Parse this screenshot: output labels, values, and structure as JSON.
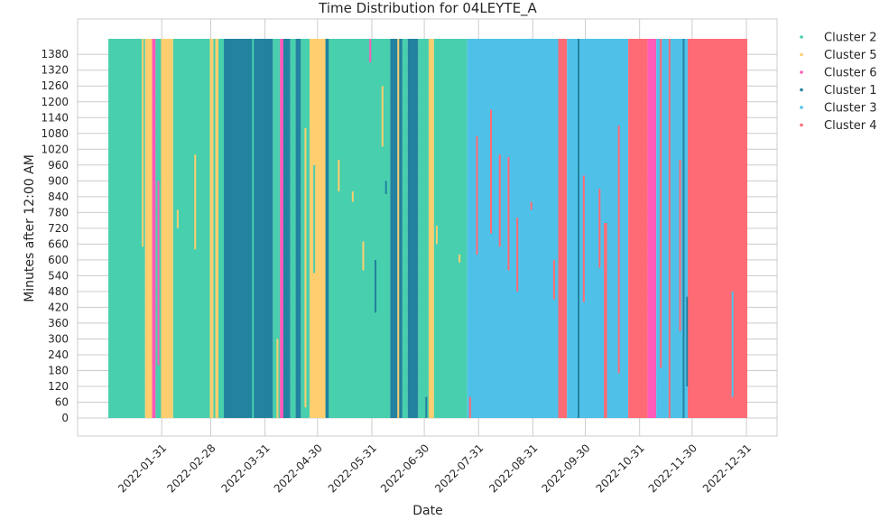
{
  "chart_data": {
    "type": "scatter",
    "title": "Time Distribution for 04LEYTE_A",
    "xlabel": "Date",
    "ylabel": "Minutes after 12:00 AM",
    "x_range": [
      "2022-01-01",
      "2022-12-31"
    ],
    "ylim": [
      0,
      1439
    ],
    "y_ticks": [
      "0",
      "60",
      "120",
      "180",
      "240",
      "300",
      "360",
      "420",
      "480",
      "540",
      "600",
      "660",
      "720",
      "780",
      "840",
      "900",
      "960",
      "1020",
      "1080",
      "1140",
      "1200",
      "1260",
      "1320",
      "1380"
    ],
    "x_ticks": [
      "2022-01-31",
      "2022-02-28",
      "2022-03-31",
      "2022-04-30",
      "2022-05-31",
      "2022-06-30",
      "2022-07-31",
      "2022-08-31",
      "2022-09-30",
      "2022-10-31",
      "2022-11-30",
      "2022-12-31"
    ],
    "grid": true,
    "legend_position": "outside-right-top",
    "series": [
      {
        "name": "Cluster 2",
        "color": "#48cfad"
      },
      {
        "name": "Cluster 5",
        "color": "#ffce6e"
      },
      {
        "name": "Cluster 6",
        "color": "#ff5bb8"
      },
      {
        "name": "Cluster 1",
        "color": "#22829f"
      },
      {
        "name": "Cluster 3",
        "color": "#4fc1e9"
      },
      {
        "name": "Cluster 4",
        "color": "#ff6b74"
      }
    ],
    "day_blocks": [
      {
        "start": "2022-01-01",
        "end": "2022-01-21",
        "series": "Cluster 2"
      },
      {
        "start": "2022-01-22",
        "end": "2022-01-25",
        "series": "Cluster 5"
      },
      {
        "start": "2022-01-26",
        "end": "2022-01-27",
        "series": "Cluster 6"
      },
      {
        "start": "2022-01-28",
        "end": "2022-01-31",
        "series": "Cluster 2"
      },
      {
        "start": "2022-02-01",
        "end": "2022-02-06",
        "series": "Cluster 5"
      },
      {
        "start": "2022-02-07",
        "end": "2022-02-27",
        "series": "Cluster 2"
      },
      {
        "start": "2022-02-28",
        "end": "2022-03-01",
        "series": "Cluster 5"
      },
      {
        "start": "2022-03-02",
        "end": "2022-03-07",
        "series": "Cluster 2"
      },
      {
        "start": "2022-03-08",
        "end": "2022-04-04",
        "series": "Cluster 1"
      },
      {
        "start": "2022-04-05",
        "end": "2022-04-08",
        "series": "Cluster 2"
      },
      {
        "start": "2022-04-09",
        "end": "2022-04-10",
        "series": "Cluster 6"
      },
      {
        "start": "2022-04-11",
        "end": "2022-04-14",
        "series": "Cluster 1"
      },
      {
        "start": "2022-04-15",
        "end": "2022-04-17",
        "series": "Cluster 2"
      },
      {
        "start": "2022-04-18",
        "end": "2022-04-20",
        "series": "Cluster 1"
      },
      {
        "start": "2022-04-21",
        "end": "2022-04-25",
        "series": "Cluster 2"
      },
      {
        "start": "2022-04-26",
        "end": "2022-05-04",
        "series": "Cluster 5"
      },
      {
        "start": "2022-05-05",
        "end": "2022-06-10",
        "series": "Cluster 2"
      },
      {
        "start": "2022-06-11",
        "end": "2022-06-17",
        "series": "Cluster 1"
      },
      {
        "start": "2022-06-18",
        "end": "2022-06-20",
        "series": "Cluster 2"
      },
      {
        "start": "2022-06-21",
        "end": "2022-06-26",
        "series": "Cluster 1"
      },
      {
        "start": "2022-06-27",
        "end": "2022-07-02",
        "series": "Cluster 2"
      },
      {
        "start": "2022-07-03",
        "end": "2022-07-05",
        "series": "Cluster 5"
      },
      {
        "start": "2022-07-06",
        "end": "2022-07-24",
        "series": "Cluster 2"
      },
      {
        "start": "2022-07-25",
        "end": "2022-09-14",
        "series": "Cluster 3"
      },
      {
        "start": "2022-09-15",
        "end": "2022-09-19",
        "series": "Cluster 4"
      },
      {
        "start": "2022-09-20",
        "end": "2022-10-24",
        "series": "Cluster 3"
      },
      {
        "start": "2022-10-25",
        "end": "2022-11-04",
        "series": "Cluster 4"
      },
      {
        "start": "2022-11-05",
        "end": "2022-11-09",
        "series": "Cluster 6"
      },
      {
        "start": "2022-11-10",
        "end": "2022-11-27",
        "series": "Cluster 3"
      },
      {
        "start": "2022-11-28",
        "end": "2022-12-31",
        "series": "Cluster 4"
      }
    ],
    "interruptions": [
      {
        "start": "2022-01-20",
        "end": "2022-01-20",
        "series": "Cluster 5",
        "ymin": 650,
        "ymax": 1439
      },
      {
        "start": "2022-01-29",
        "end": "2022-01-29",
        "series": "Cluster 6",
        "ymin": 200,
        "ymax": 900
      },
      {
        "start": "2022-01-31",
        "end": "2022-01-31",
        "series": "Cluster 5",
        "ymin": 0,
        "ymax": 1439
      },
      {
        "start": "2022-02-09",
        "end": "2022-02-09",
        "series": "Cluster 5",
        "ymin": 720,
        "ymax": 790
      },
      {
        "start": "2022-02-19",
        "end": "2022-02-19",
        "series": "Cluster 5",
        "ymin": 640,
        "ymax": 1000
      },
      {
        "start": "2022-03-03",
        "end": "2022-03-04",
        "series": "Cluster 5",
        "ymin": 0,
        "ymax": 1439
      },
      {
        "start": "2022-03-24",
        "end": "2022-03-24",
        "series": "Cluster 2",
        "ymin": 0,
        "ymax": 1439
      },
      {
        "start": "2022-04-07",
        "end": "2022-04-07",
        "series": "Cluster 5",
        "ymin": 0,
        "ymax": 300
      },
      {
        "start": "2022-04-23",
        "end": "2022-04-23",
        "series": "Cluster 5",
        "ymin": 40,
        "ymax": 1100
      },
      {
        "start": "2022-04-28",
        "end": "2022-04-28",
        "series": "Cluster 2",
        "ymin": 550,
        "ymax": 960
      },
      {
        "start": "2022-05-12",
        "end": "2022-05-12",
        "series": "Cluster 5",
        "ymin": 860,
        "ymax": 980
      },
      {
        "start": "2022-05-05",
        "end": "2022-05-06",
        "series": "Cluster 1",
        "ymin": 0,
        "ymax": 1439
      },
      {
        "start": "2022-05-20",
        "end": "2022-05-20",
        "series": "Cluster 5",
        "ymin": 820,
        "ymax": 860
      },
      {
        "start": "2022-05-26",
        "end": "2022-05-26",
        "series": "Cluster 5",
        "ymin": 560,
        "ymax": 670
      },
      {
        "start": "2022-05-30",
        "end": "2022-05-30",
        "series": "Cluster 6",
        "ymin": 1350,
        "ymax": 1439
      },
      {
        "start": "2022-06-02",
        "end": "2022-06-02",
        "series": "Cluster 1",
        "ymin": 400,
        "ymax": 600
      },
      {
        "start": "2022-06-06",
        "end": "2022-06-06",
        "series": "Cluster 5",
        "ymin": 1030,
        "ymax": 1260
      },
      {
        "start": "2022-06-08",
        "end": "2022-06-08",
        "series": "Cluster 1",
        "ymin": 850,
        "ymax": 900
      },
      {
        "start": "2022-06-15",
        "end": "2022-06-15",
        "series": "Cluster 5",
        "ymin": 0,
        "ymax": 1439
      },
      {
        "start": "2022-07-01",
        "end": "2022-07-01",
        "series": "Cluster 1",
        "ymin": 0,
        "ymax": 80
      },
      {
        "start": "2022-07-07",
        "end": "2022-07-07",
        "series": "Cluster 5",
        "ymin": 660,
        "ymax": 730
      },
      {
        "start": "2022-07-20",
        "end": "2022-07-20",
        "series": "Cluster 5",
        "ymin": 590,
        "ymax": 620
      },
      {
        "start": "2022-07-26",
        "end": "2022-07-26",
        "series": "Cluster 4",
        "ymin": 0,
        "ymax": 80
      },
      {
        "start": "2022-07-30",
        "end": "2022-07-30",
        "series": "Cluster 4",
        "ymin": 620,
        "ymax": 1070
      },
      {
        "start": "2022-08-07",
        "end": "2022-08-07",
        "series": "Cluster 4",
        "ymin": 700,
        "ymax": 1170
      },
      {
        "start": "2022-08-12",
        "end": "2022-08-12",
        "series": "Cluster 4",
        "ymin": 650,
        "ymax": 1000
      },
      {
        "start": "2022-08-17",
        "end": "2022-08-17",
        "series": "Cluster 4",
        "ymin": 560,
        "ymax": 990
      },
      {
        "start": "2022-08-22",
        "end": "2022-08-22",
        "series": "Cluster 4",
        "ymin": 480,
        "ymax": 760
      },
      {
        "start": "2022-08-30",
        "end": "2022-08-30",
        "series": "Cluster 4",
        "ymin": 790,
        "ymax": 820
      },
      {
        "start": "2022-09-12",
        "end": "2022-09-12",
        "series": "Cluster 4",
        "ymin": 450,
        "ymax": 600
      },
      {
        "start": "2022-09-26",
        "end": "2022-09-26",
        "series": "Cluster 1",
        "ymin": 0,
        "ymax": 1439
      },
      {
        "start": "2022-09-29",
        "end": "2022-09-29",
        "series": "Cluster 4",
        "ymin": 440,
        "ymax": 920
      },
      {
        "start": "2022-10-08",
        "end": "2022-10-08",
        "series": "Cluster 4",
        "ymin": 570,
        "ymax": 870
      },
      {
        "start": "2022-10-11",
        "end": "2022-10-12",
        "series": "Cluster 4",
        "ymin": 0,
        "ymax": 740
      },
      {
        "start": "2022-10-19",
        "end": "2022-10-19",
        "series": "Cluster 4",
        "ymin": 170,
        "ymax": 1110
      },
      {
        "start": "2022-11-08",
        "end": "2022-11-08",
        "series": "Cluster 6",
        "ymin": 560,
        "ymax": 1100
      },
      {
        "start": "2022-11-12",
        "end": "2022-11-12",
        "series": "Cluster 4",
        "ymin": 190,
        "ymax": 1439
      },
      {
        "start": "2022-11-17",
        "end": "2022-11-17",
        "series": "Cluster 4",
        "ymin": 0,
        "ymax": 1439
      },
      {
        "start": "2022-11-23",
        "end": "2022-11-23",
        "series": "Cluster 4",
        "ymin": 330,
        "ymax": 980
      },
      {
        "start": "2022-11-25",
        "end": "2022-11-25",
        "series": "Cluster 1",
        "ymin": 0,
        "ymax": 1439
      },
      {
        "start": "2022-11-27",
        "end": "2022-11-27",
        "series": "Cluster 1",
        "ymin": 120,
        "ymax": 460
      },
      {
        "start": "2022-12-23",
        "end": "2022-12-23",
        "series": "Cluster 3",
        "ymin": 80,
        "ymax": 480
      }
    ]
  }
}
